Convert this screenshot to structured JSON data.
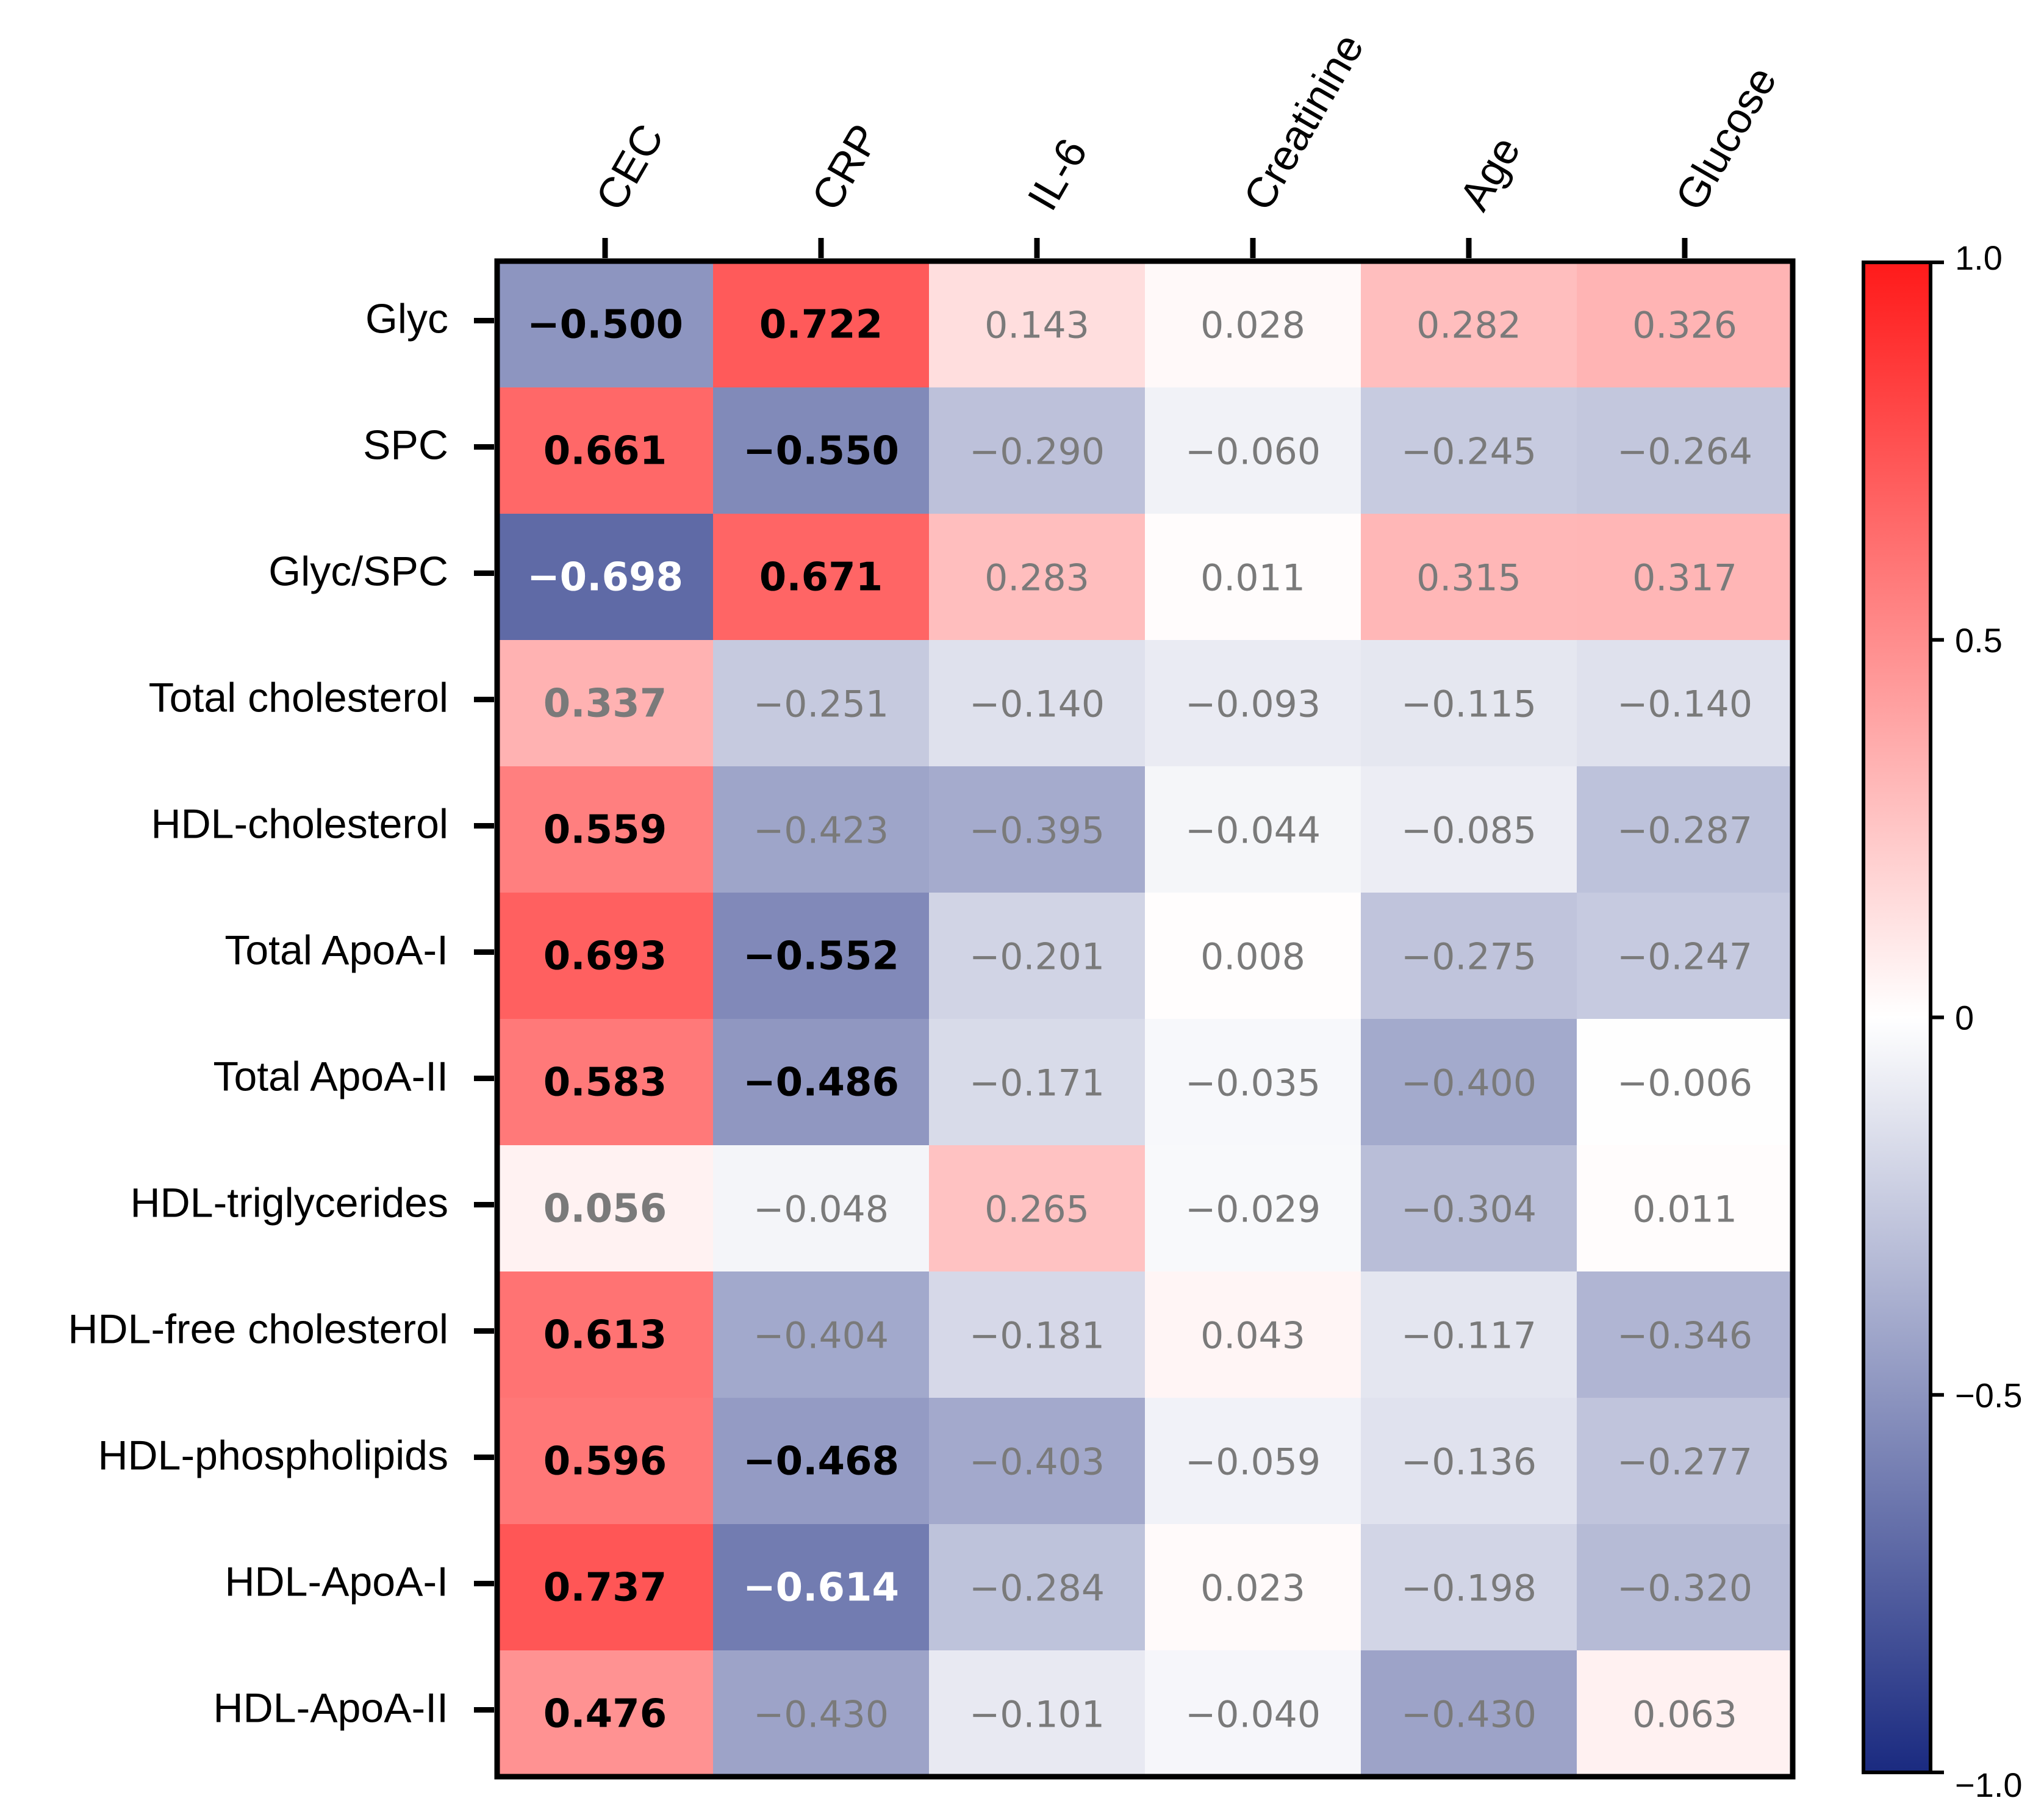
{
  "chart_data": {
    "type": "heatmap",
    "title": "",
    "columns": [
      "CEC",
      "CRP",
      "IL-6",
      "Creatinine",
      "Age",
      "Glucose"
    ],
    "rows": [
      "Glyc",
      "SPC",
      "Glyc/SPC",
      "Total cholesterol",
      "HDL-cholesterol",
      "Total ApoA-I",
      "Total ApoA-II",
      "HDL-triglycerides",
      "HDL-free cholesterol",
      "HDL-phospholipids",
      "HDL-ApoA-I",
      "HDL-ApoA-II"
    ],
    "values": [
      [
        -0.5,
        0.722,
        0.143,
        0.028,
        0.282,
        0.326
      ],
      [
        0.661,
        -0.55,
        -0.29,
        -0.06,
        -0.245,
        -0.264
      ],
      [
        -0.698,
        0.671,
        0.283,
        0.011,
        0.315,
        0.317
      ],
      [
        0.337,
        -0.251,
        -0.14,
        -0.093,
        -0.115,
        -0.14
      ],
      [
        0.559,
        -0.423,
        -0.395,
        -0.044,
        -0.085,
        -0.287
      ],
      [
        0.693,
        -0.552,
        -0.201,
        0.008,
        -0.275,
        -0.247
      ],
      [
        0.583,
        -0.486,
        -0.171,
        -0.035,
        -0.4,
        -0.006
      ],
      [
        0.056,
        -0.048,
        0.265,
        -0.029,
        -0.304,
        0.011
      ],
      [
        0.613,
        -0.404,
        -0.181,
        0.043,
        -0.117,
        -0.346
      ],
      [
        0.596,
        -0.468,
        -0.403,
        -0.059,
        -0.136,
        -0.277
      ],
      [
        0.737,
        -0.614,
        -0.284,
        0.023,
        -0.198,
        -0.32
      ],
      [
        0.476,
        -0.43,
        -0.101,
        -0.04,
        -0.43,
        0.063
      ]
    ],
    "value_labels": [
      [
        "−0.500",
        "0.722",
        "0.143",
        "0.028",
        "0.282",
        "0.326"
      ],
      [
        "0.661",
        "−0.550",
        "−0.290",
        "−0.060",
        "−0.245",
        "−0.264"
      ],
      [
        "−0.698",
        "0.671",
        "0.283",
        "0.011",
        "0.315",
        "0.317"
      ],
      [
        "0.337",
        "−0.251",
        "−0.140",
        "−0.093",
        "−0.115",
        "−0.140"
      ],
      [
        "0.559",
        "−0.423",
        "−0.395",
        "−0.044",
        "−0.085",
        "−0.287"
      ],
      [
        "0.693",
        "−0.552",
        "−0.201",
        "0.008",
        "−0.275",
        "−0.247"
      ],
      [
        "0.583",
        "−0.486",
        "−0.171",
        "−0.035",
        "−0.400",
        "−0.006"
      ],
      [
        "0.056",
        "−0.048",
        "0.265",
        "−0.029",
        "−0.304",
        "0.011"
      ],
      [
        "0.613",
        "−0.404",
        "−0.181",
        "0.043",
        "−0.117",
        "−0.346"
      ],
      [
        "0.596",
        "−0.468",
        "−0.403",
        "−0.059",
        "−0.136",
        "−0.277"
      ],
      [
        "0.737",
        "−0.614",
        "−0.284",
        "0.023",
        "−0.198",
        "−0.320"
      ],
      [
        "0.476",
        "−0.430",
        "−0.101",
        "−0.040",
        "−0.430",
        "0.063"
      ]
    ],
    "bold_cells": [
      [
        0,
        0
      ],
      [
        0,
        1
      ],
      [
        1,
        0
      ],
      [
        1,
        1
      ],
      [
        2,
        0
      ],
      [
        2,
        1
      ],
      [
        3,
        0
      ],
      [
        4,
        0
      ],
      [
        5,
        0
      ],
      [
        5,
        1
      ],
      [
        6,
        0
      ],
      [
        6,
        1
      ],
      [
        7,
        0
      ],
      [
        8,
        0
      ],
      [
        9,
        0
      ],
      [
        9,
        1
      ],
      [
        10,
        0
      ],
      [
        10,
        1
      ],
      [
        11,
        0
      ]
    ],
    "emphasized_cells": [
      [
        0,
        0
      ],
      [
        0,
        1
      ],
      [
        1,
        0
      ],
      [
        1,
        1
      ],
      [
        2,
        0
      ],
      [
        2,
        1
      ],
      [
        4,
        0
      ],
      [
        5,
        0
      ],
      [
        5,
        1
      ],
      [
        6,
        0
      ],
      [
        6,
        1
      ],
      [
        8,
        0
      ],
      [
        9,
        0
      ],
      [
        9,
        1
      ],
      [
        10,
        0
      ],
      [
        10,
        1
      ],
      [
        11,
        0
      ]
    ],
    "colorbar": {
      "range": [
        -1.0,
        1.0
      ],
      "ticks": [
        1.0,
        0.5,
        0,
        -0.5,
        -1.0
      ],
      "tick_labels": [
        "1.0",
        "0.5",
        "0",
        "−0.5",
        "−1.0"
      ],
      "colors": {
        "negative": "#1a2a80",
        "zero": "#ffffff",
        "positive": "#ff1a1a"
      }
    },
    "text_colors": {
      "emphasized_dark": "#000000",
      "emphasized_light": "#ffffff",
      "normal": "#7a7a7a"
    }
  }
}
